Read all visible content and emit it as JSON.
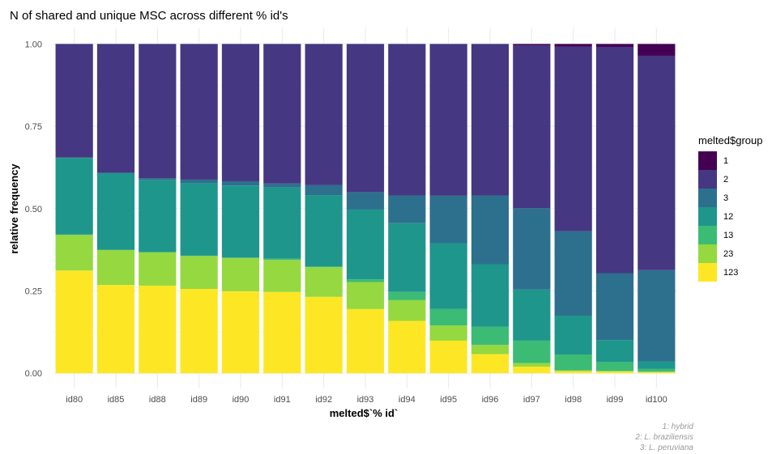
{
  "chart_data": {
    "type": "bar",
    "stacked": true,
    "title": "N of shared and unique MSC across different % id's",
    "xlabel": "melted$`% id`",
    "ylabel": "relative frequency",
    "ylim": [
      0,
      1
    ],
    "yticks": [
      "0.00",
      "0.25",
      "0.50",
      "0.75",
      "1.00"
    ],
    "categories": [
      "id80",
      "id85",
      "id88",
      "id89",
      "id90",
      "id91",
      "id92",
      "id93",
      "id94",
      "id95",
      "id96",
      "id97",
      "id98",
      "id99",
      "id100"
    ],
    "legend": {
      "title": "melted$group",
      "position": "right"
    },
    "series": [
      {
        "name": "123",
        "color": "#FDE725",
        "values": [
          0.312,
          0.268,
          0.266,
          0.256,
          0.249,
          0.247,
          0.232,
          0.195,
          0.159,
          0.099,
          0.058,
          0.02,
          0.006,
          0.005,
          0.003
        ]
      },
      {
        "name": "23",
        "color": "#95D840",
        "values": [
          0.108,
          0.106,
          0.101,
          0.1,
          0.101,
          0.097,
          0.09,
          0.082,
          0.063,
          0.046,
          0.028,
          0.011,
          0.003,
          0.002,
          0.002
        ]
      },
      {
        "name": "13",
        "color": "#3CBB75",
        "values": [
          0.001,
          0.001,
          0.001,
          0.001,
          0.001,
          0.004,
          0.002,
          0.008,
          0.025,
          0.05,
          0.055,
          0.068,
          0.048,
          0.027,
          0.008
        ]
      },
      {
        "name": "12",
        "color": "#1F968B",
        "values": [
          0.233,
          0.231,
          0.219,
          0.22,
          0.219,
          0.216,
          0.217,
          0.212,
          0.209,
          0.2,
          0.19,
          0.155,
          0.118,
          0.067,
          0.023
        ]
      },
      {
        "name": "3",
        "color": "#2D708E",
        "values": [
          0.001,
          0.004,
          0.005,
          0.011,
          0.013,
          0.012,
          0.03,
          0.053,
          0.084,
          0.144,
          0.209,
          0.247,
          0.256,
          0.203,
          0.277
        ]
      },
      {
        "name": "2",
        "color": "#453781",
        "values": [
          0.345,
          0.39,
          0.408,
          0.412,
          0.417,
          0.424,
          0.429,
          0.45,
          0.46,
          0.461,
          0.46,
          0.495,
          0.561,
          0.687,
          0.651
        ]
      },
      {
        "name": "1",
        "color": "#440154",
        "values": [
          0,
          0,
          0,
          0,
          0,
          0,
          0,
          0,
          0,
          0,
          0,
          0.004,
          0.008,
          0.009,
          0.036
        ]
      }
    ],
    "legend_order": [
      "1",
      "2",
      "3",
      "12",
      "13",
      "23",
      "123"
    ],
    "caption": [
      "1: hybrid",
      "2: L. braziliensis",
      "3: L. peruviana"
    ]
  }
}
